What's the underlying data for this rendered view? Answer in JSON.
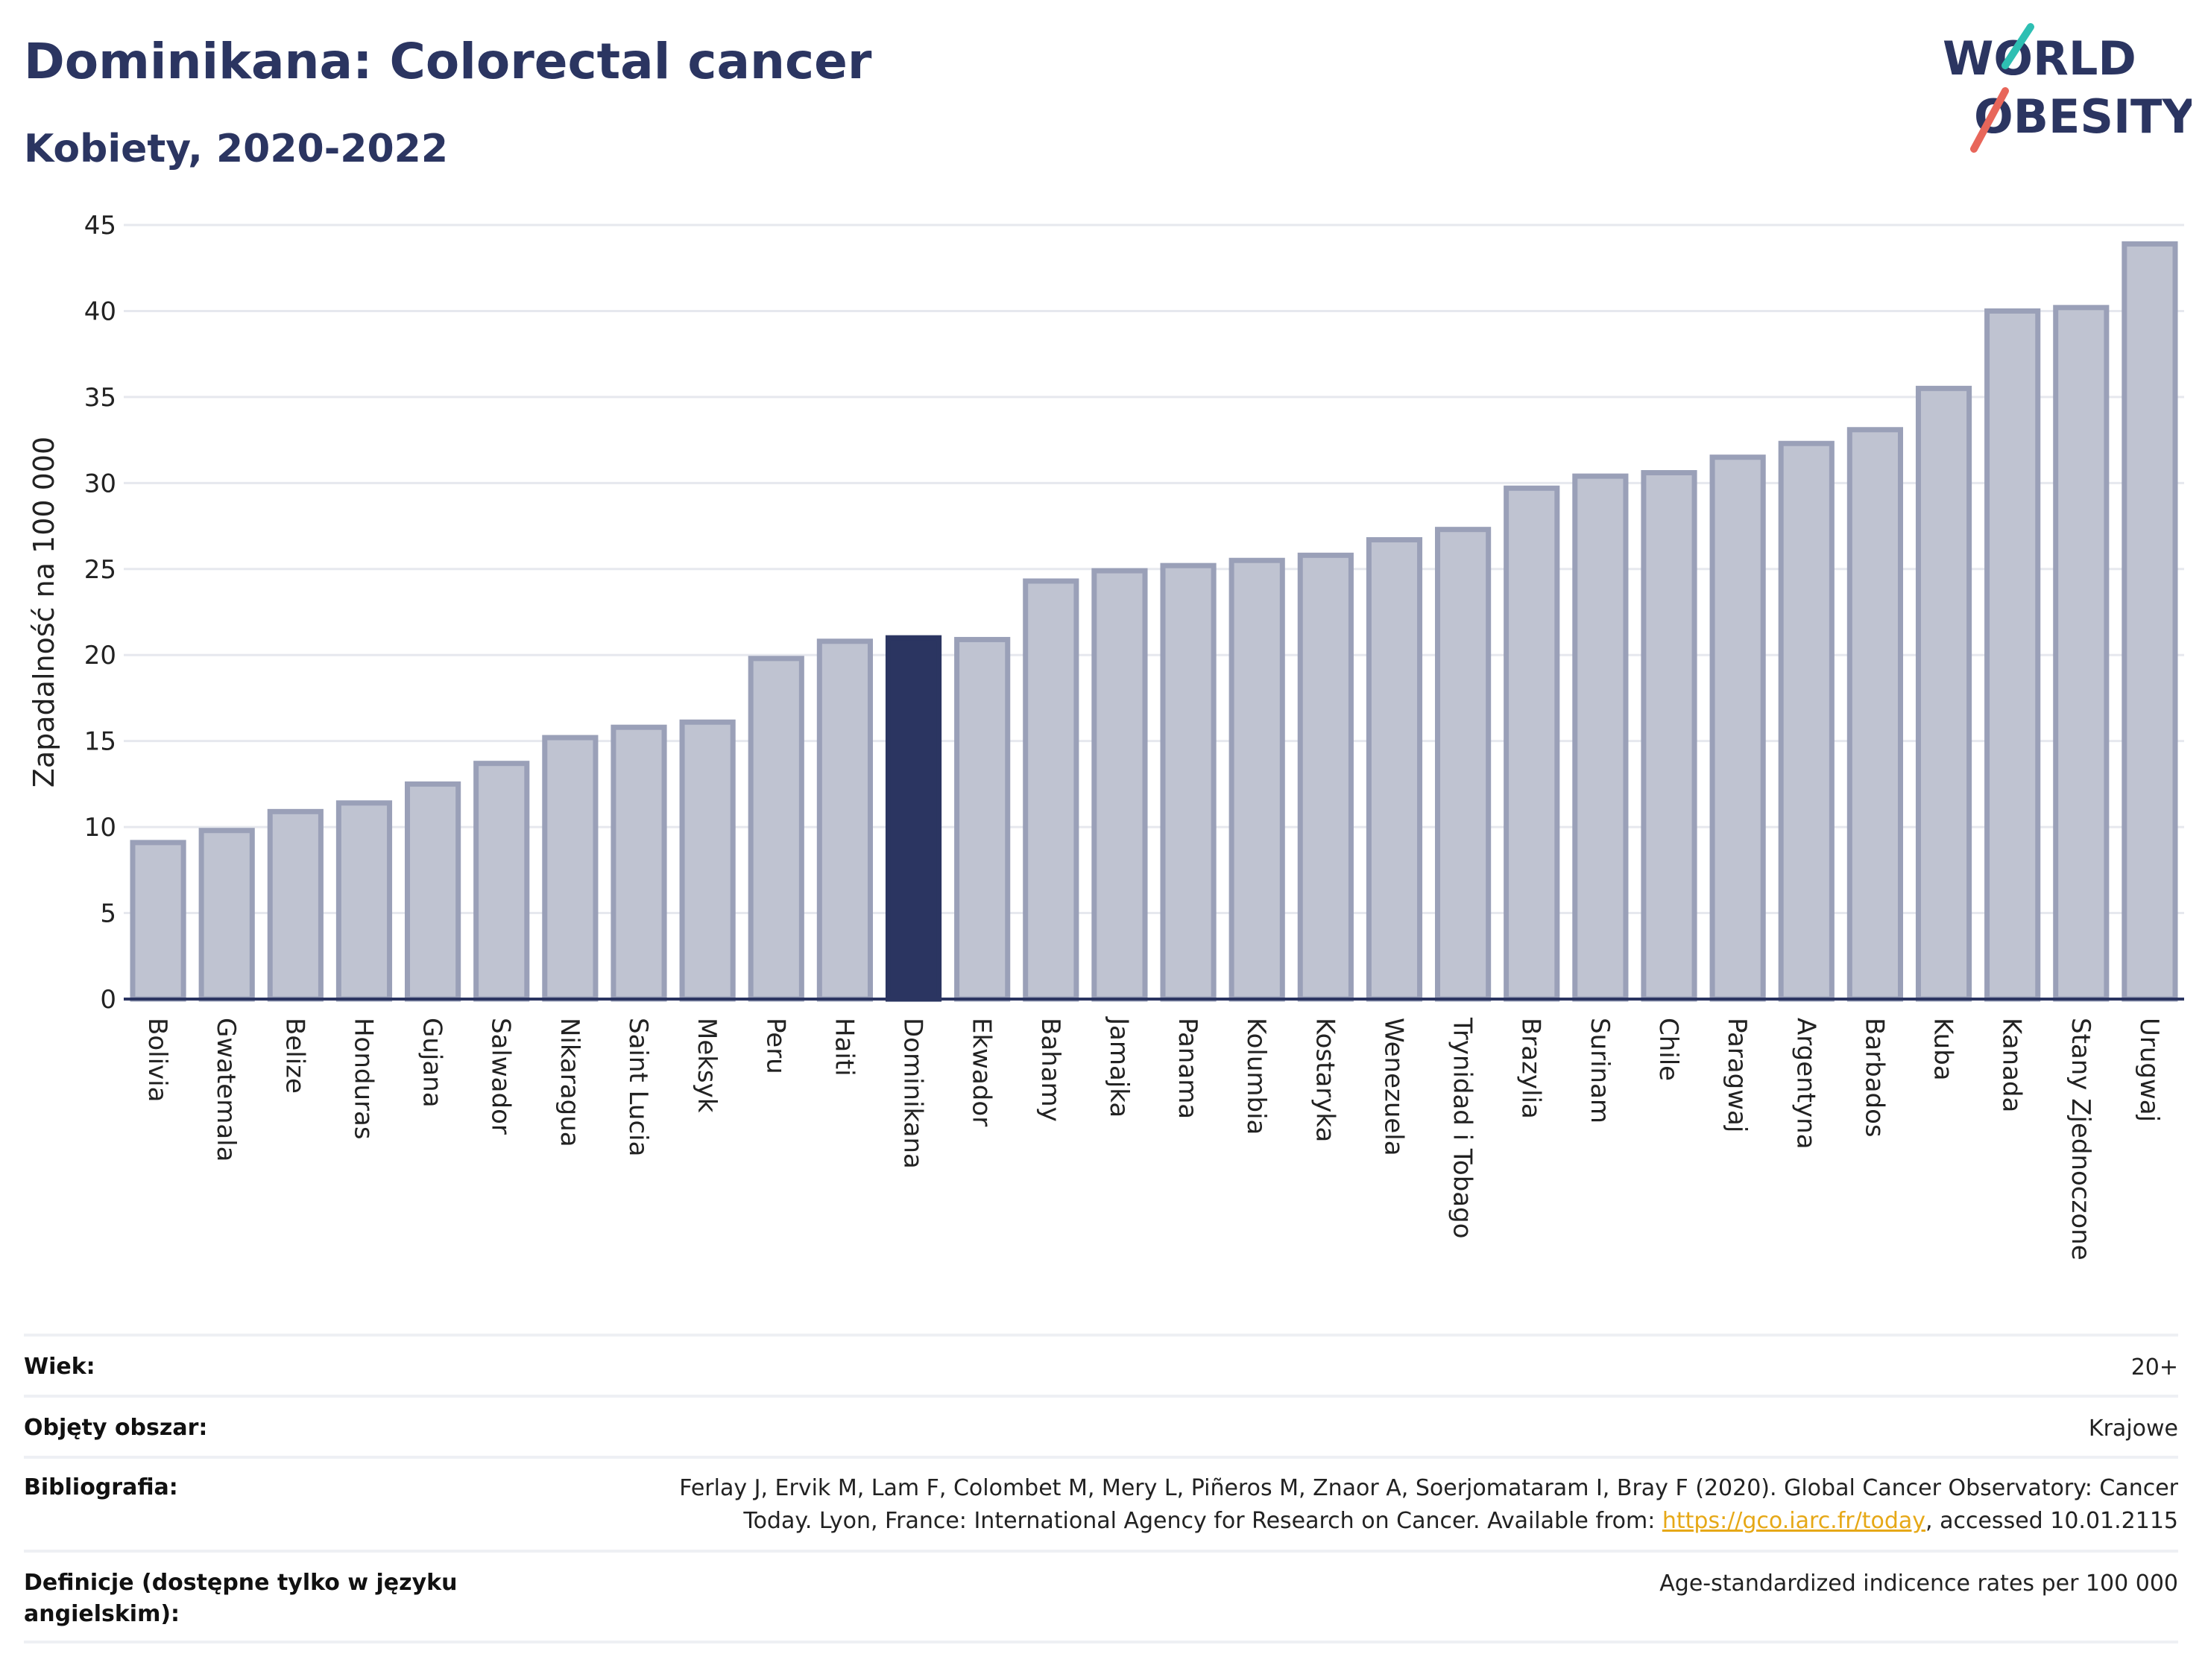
{
  "header": {
    "title": "Dominikana: Colorectal cancer",
    "subtitle": "Kobiety, 2020-2022"
  },
  "logo": {
    "line1": "WORLD",
    "line2": "OBESITY",
    "accent_colors": [
      "#2ebfb3",
      "#e8665a"
    ]
  },
  "colors": {
    "bar": "#bfc3d1",
    "bar_stroke": "#9aa0b8",
    "highlight": "#2b3561",
    "grid": "#e6e8ee",
    "axis": "#2b3561"
  },
  "chart_data": {
    "type": "bar",
    "title": "Dominikana: Colorectal cancer",
    "subtitle": "Kobiety, 2020-2022",
    "xlabel": "",
    "ylabel": "Zapadalność na 100 000",
    "ylim": [
      0,
      45
    ],
    "yticks": [
      0,
      5,
      10,
      15,
      20,
      25,
      30,
      35,
      40,
      45
    ],
    "grid": true,
    "highlight": "Dominikana",
    "categories": [
      "Bolivia",
      "Gwatemala",
      "Belize",
      "Honduras",
      "Gujana",
      "Salwador",
      "Nikaragua",
      "Saint Lucia",
      "Meksyk",
      "Peru",
      "Haiti",
      "Dominikana",
      "Ekwador",
      "Bahamy",
      "Jamajka",
      "Panama",
      "Kolumbia",
      "Kostaryka",
      "Wenezuela",
      "Trynidad i Tobago",
      "Brazylia",
      "Surinam",
      "Chile",
      "Paragwaj",
      "Argentyna",
      "Barbados",
      "Kuba",
      "Kanada",
      "Stany Zjednoczone",
      "Urugwaj"
    ],
    "values": [
      9.1,
      9.8,
      10.9,
      11.4,
      12.5,
      13.7,
      15.2,
      15.8,
      16.1,
      19.8,
      20.8,
      21.0,
      20.9,
      24.3,
      24.9,
      25.2,
      25.5,
      25.8,
      26.7,
      27.3,
      29.7,
      30.4,
      30.6,
      31.5,
      32.3,
      33.1,
      35.5,
      40.0,
      40.2,
      43.9
    ]
  },
  "meta": {
    "rows": [
      {
        "key": "Wiek:",
        "value": "20+"
      },
      {
        "key": "Objęty obszar:",
        "value": "Krajowe"
      },
      {
        "key": "Bibliografia:",
        "value_line1": "Ferlay J, Ervik M, Lam F, Colombet M, Mery L, Piñeros M, Znaor A, Soerjomataram I, Bray F (2020). Global Cancer Observatory: Cancer",
        "value_line2_pre": "Today. Lyon, France: International Agency for Research on Cancer. Available from: ",
        "link": "https://gco.iarc.fr/today",
        "value_line2_post": ", accessed 10.01.2115"
      },
      {
        "key": "Definicje (dostępne tylko w języku angielskim):",
        "value": "Age-standardized indicence rates per 100 000"
      }
    ]
  }
}
